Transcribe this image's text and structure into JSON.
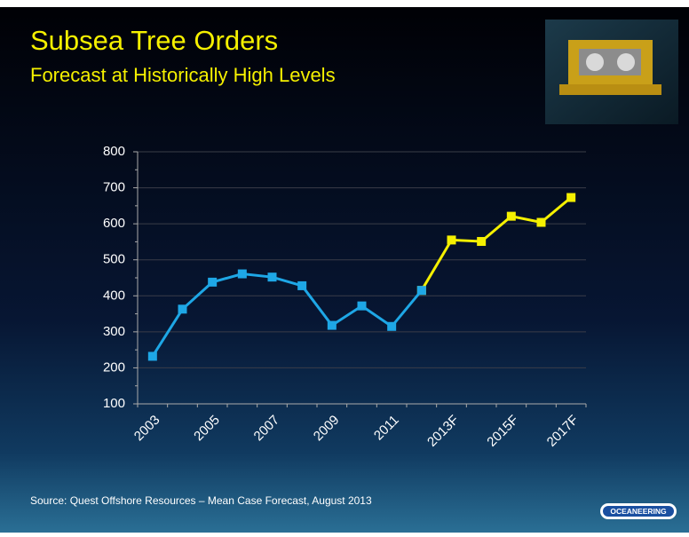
{
  "chart_data": {
    "type": "line",
    "title": "Subsea Tree Orders",
    "subtitle": "Forecast at Historically High Levels",
    "categories": [
      "2003",
      null,
      "2005",
      null,
      "2007",
      null,
      "2009",
      null,
      "2011",
      null,
      "2013F",
      null,
      "2015F",
      null,
      "2017F"
    ],
    "series": [
      {
        "color": "#f5f000",
        "values": [
          null,
          null,
          null,
          null,
          null,
          null,
          null,
          null,
          null,
          415,
          555,
          551,
          621,
          604,
          673
        ]
      },
      {
        "color": "#1ea7e6",
        "values": [
          232,
          363,
          438,
          461,
          452,
          428,
          318,
          372,
          315,
          415,
          null,
          null,
          null,
          null,
          null
        ]
      }
    ],
    "ylim": [
      100,
      800
    ],
    "yticks": [
      100,
      200,
      300,
      400,
      500,
      600,
      700,
      800
    ],
    "grid": true
  },
  "source": "Source:  Quest Offshore Resources – Mean Case Forecast, August 2013",
  "logo": "OCEANEERING"
}
